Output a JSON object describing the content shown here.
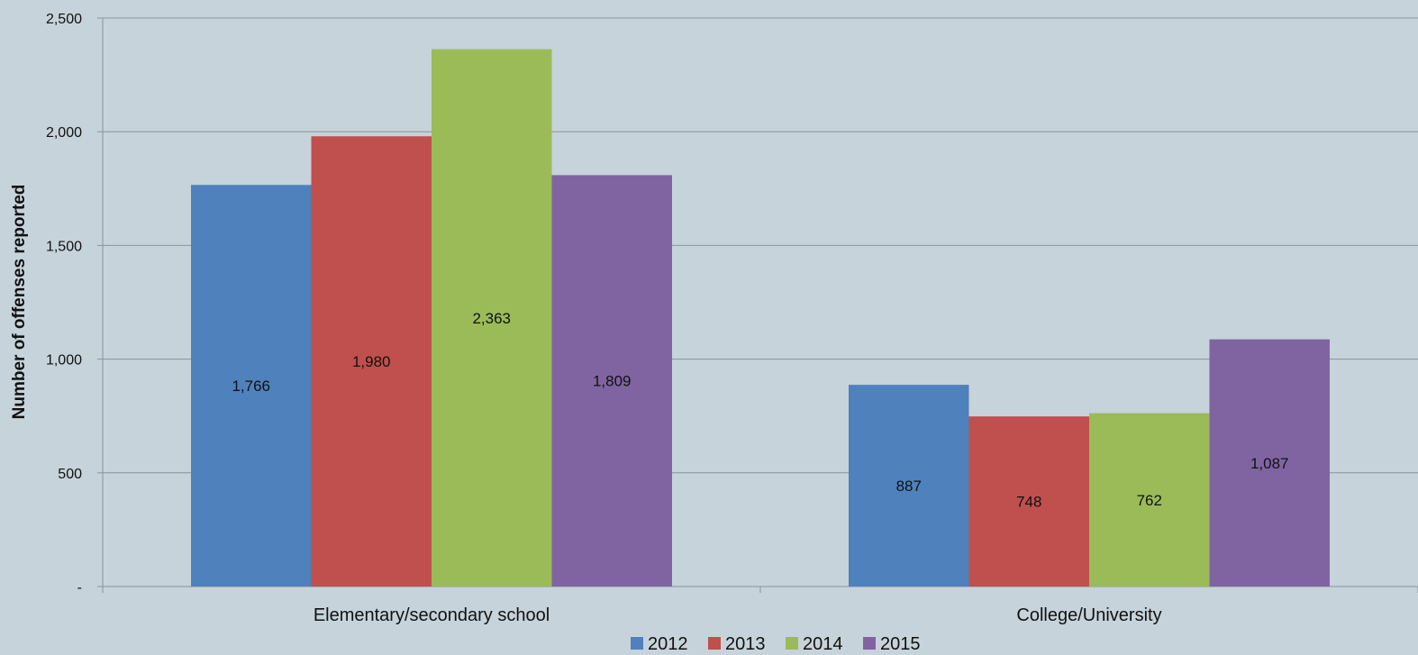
{
  "chart_data": {
    "type": "bar",
    "title": "",
    "xlabel": "",
    "ylabel": "Number of offenses reported",
    "categories": [
      "Elementary/secondary school",
      "College/University"
    ],
    "series": [
      {
        "name": "2012",
        "color": "#4f81bd",
        "values": [
          1766,
          887
        ],
        "labels": [
          "1,766",
          "887"
        ]
      },
      {
        "name": "2013",
        "color": "#c0504d",
        "values": [
          1980,
          748
        ],
        "labels": [
          "1,980",
          "748"
        ]
      },
      {
        "name": "2014",
        "color": "#9bbb59",
        "values": [
          2363,
          762
        ],
        "labels": [
          "2,363",
          "762"
        ]
      },
      {
        "name": "2015",
        "color": "#8064a2",
        "values": [
          1809,
          1087
        ],
        "labels": [
          "1,809",
          "1,087"
        ]
      }
    ],
    "ylim": [
      0,
      2500
    ],
    "yticks": [
      {
        "value": 0,
        "label": "-"
      },
      {
        "value": 500,
        "label": "500"
      },
      {
        "value": 1000,
        "label": "1,000"
      },
      {
        "value": 1500,
        "label": "1,500"
      },
      {
        "value": 2000,
        "label": "2,000"
      },
      {
        "value": 2500,
        "label": "2,500"
      }
    ],
    "grid": true,
    "legend": "bottom"
  }
}
